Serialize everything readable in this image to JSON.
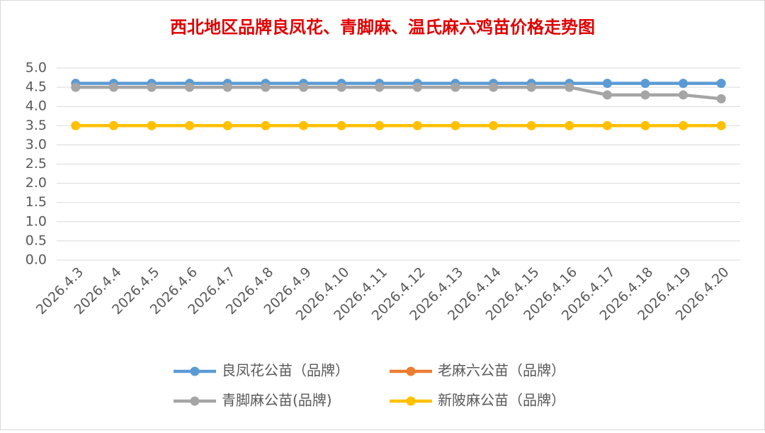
{
  "chart_data": {
    "type": "line",
    "title": "西北地区品牌良凤花、青脚麻、温氏麻六鸡苗价格走势图",
    "categories": [
      "2026.4.3",
      "2026.4.4",
      "2026.4.5",
      "2026.4.6",
      "2026.4.7",
      "2026.4.8",
      "2026.4.9",
      "2026.4.10",
      "2026.4.11",
      "2026.4.12",
      "2026.4.13",
      "2026.4.14",
      "2026.4.15",
      "2026.4.16",
      "2026.4.17",
      "2026.4.18",
      "2026.4.19",
      "2026.4.20"
    ],
    "series": [
      {
        "name": "良凤花公苗（品牌）",
        "color": "#5b9bd5",
        "values": [
          4.6,
          4.6,
          4.6,
          4.6,
          4.6,
          4.6,
          4.6,
          4.6,
          4.6,
          4.6,
          4.6,
          4.6,
          4.6,
          4.6,
          4.6,
          4.6,
          4.6,
          4.6
        ]
      },
      {
        "name": "老麻六公苗（品牌）",
        "color": "#ed7d31",
        "values": [
          null,
          null,
          null,
          null,
          null,
          null,
          null,
          null,
          null,
          null,
          null,
          null,
          null,
          null,
          null,
          null,
          null,
          null
        ]
      },
      {
        "name": "青脚麻公苗(品牌)",
        "color": "#a5a5a5",
        "values": [
          4.5,
          4.5,
          4.5,
          4.5,
          4.5,
          4.5,
          4.5,
          4.5,
          4.5,
          4.5,
          4.5,
          4.5,
          4.5,
          4.5,
          4.3,
          4.3,
          4.3,
          4.2
        ]
      },
      {
        "name": "新陂麻公苗（品牌）",
        "color": "#ffc000",
        "values": [
          3.5,
          3.5,
          3.5,
          3.5,
          3.5,
          3.5,
          3.5,
          3.5,
          3.5,
          3.5,
          3.5,
          3.5,
          3.5,
          3.5,
          3.5,
          3.5,
          3.5,
          3.5
        ]
      }
    ],
    "ylim": [
      0,
      5
    ],
    "yticks": [
      {
        "value": 0,
        "label": "0.0"
      },
      0.5,
      {
        "value": 1,
        "label": "1.0"
      },
      1.5,
      {
        "value": 2,
        "label": "2.0"
      },
      2.5,
      {
        "value": 3,
        "label": "3.0"
      },
      3.5,
      {
        "value": 4,
        "label": "4.0"
      },
      4.5,
      {
        "value": 5,
        "label": "5.0"
      }
    ],
    "grid": true,
    "legend": "bottom"
  }
}
